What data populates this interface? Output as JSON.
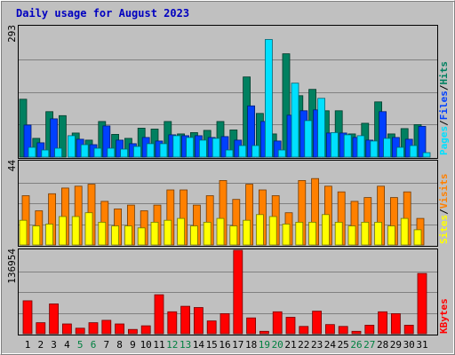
{
  "chart_data": {
    "title": "Daily usage for August 2023",
    "days": [
      "1",
      "2",
      "3",
      "4",
      "5",
      "6",
      "7",
      "8",
      "9",
      "10",
      "11",
      "12",
      "13",
      "14",
      "15",
      "16",
      "17",
      "18",
      "19",
      "20",
      "21",
      "22",
      "23",
      "24",
      "25",
      "26",
      "27",
      "28",
      "29",
      "30",
      "31"
    ],
    "weekend_days": [
      "5",
      "6",
      "12",
      "13",
      "19",
      "20",
      "26",
      "27"
    ],
    "charts": [
      {
        "type": "bar",
        "name": "hits-files-pages",
        "ytick": "293",
        "ymax": 293,
        "legend": [
          "Pages",
          "/",
          "Files",
          "/",
          "Hits"
        ],
        "series": [
          {
            "name": "Hits",
            "color": "#008060",
            "values": [
              130,
              42,
              102,
              93,
              54,
              38,
              80,
              51,
              42,
              65,
              63,
              80,
              52,
              55,
              60,
              80,
              61,
              180,
              98,
              52,
              232,
              138,
              152,
              104,
              104,
              52,
              76,
              124,
              52,
              64,
              73
            ]
          },
          {
            "name": "Files",
            "color": "#0040ff",
            "values": [
              72,
              32,
              86,
              0,
              40,
              28,
              70,
              38,
              30,
              44,
              36,
              50,
              48,
              48,
              44,
              46,
              38,
              115,
              80,
              36,
              94,
              104,
              106,
              54,
              54,
              44,
              38,
              102,
              44,
              40,
              69
            ]
          },
          {
            "name": "Pages",
            "color": "#00e0ff",
            "values": [
              22,
              16,
              20,
              48,
              28,
              20,
              20,
              18,
              24,
              30,
              30,
              48,
              44,
              38,
              42,
              16,
              26,
              26,
              264,
              16,
              166,
              82,
              132,
              55,
              50,
              48,
              36,
              42,
              22,
              26,
              10
            ]
          }
        ]
      },
      {
        "type": "bar",
        "name": "visits-sites",
        "ytick": "44",
        "ymax": 44,
        "legend": [
          "Sites",
          "/",
          "Visits"
        ],
        "series": [
          {
            "name": "Visits",
            "color": "#ff8000",
            "values": [
              26,
              18,
              27,
              30,
              31,
              32,
              23,
              19,
              21,
              18,
              21,
              29,
              29,
              21,
              26,
              34,
              24,
              32,
              29,
              26,
              17,
              34,
              35,
              31,
              28,
              23,
              25,
              31,
              25,
              28,
              14
            ]
          },
          {
            "name": "Sites",
            "color": "#ffff00",
            "values": [
              13,
              10,
              11,
              15,
              15,
              17,
              12,
              10,
              10,
              9,
              12,
              13,
              14,
              10,
              12,
              14,
              10,
              13,
              16,
              15,
              11,
              12,
              12,
              16,
              12,
              10,
              12,
              12,
              10,
              14,
              8
            ]
          }
        ]
      },
      {
        "type": "bar",
        "name": "kbytes",
        "ytick": "136954",
        "ymax": 136954,
        "legend": [
          "KBytes"
        ],
        "series": [
          {
            "name": "KBytes",
            "color": "#ff0000",
            "values": [
              54000,
              18000,
              49000,
              16000,
              9000,
              18000,
              22000,
              16000,
              7000,
              13000,
              64000,
              36000,
              45000,
              43000,
              21000,
              33000,
              136954,
              26000,
              4000,
              36000,
              27000,
              12000,
              37000,
              15000,
              12000,
              4000,
              14000,
              36000,
              33000,
              14000,
              99000
            ]
          }
        ]
      }
    ]
  }
}
